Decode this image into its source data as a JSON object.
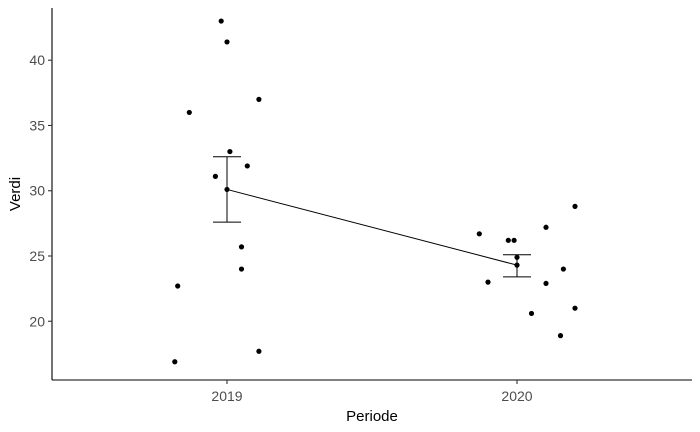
{
  "chart_data": {
    "type": "scatter",
    "xlabel": "Periode",
    "ylabel": "Verdi",
    "categories": [
      "2019",
      "2020"
    ],
    "ylim": [
      15.5,
      44
    ],
    "yticks": [
      20,
      25,
      30,
      35,
      40
    ],
    "grid": false,
    "legend": "none",
    "points": [
      {
        "category": "2019",
        "jitter": -0.18,
        "y": 16.9
      },
      {
        "category": "2019",
        "jitter": -0.17,
        "y": 22.7
      },
      {
        "category": "2019",
        "jitter": -0.13,
        "y": 36.0
      },
      {
        "category": "2019",
        "jitter": -0.04,
        "y": 31.1
      },
      {
        "category": "2019",
        "jitter": -0.02,
        "y": 43.0
      },
      {
        "category": "2019",
        "jitter": 0.0,
        "y": 41.4
      },
      {
        "category": "2019",
        "jitter": 0.01,
        "y": 33.0
      },
      {
        "category": "2019",
        "jitter": 0.05,
        "y": 25.7
      },
      {
        "category": "2019",
        "jitter": 0.05,
        "y": 24.0
      },
      {
        "category": "2019",
        "jitter": 0.07,
        "y": 31.9
      },
      {
        "category": "2019",
        "jitter": 0.11,
        "y": 37.0
      },
      {
        "category": "2019",
        "jitter": 0.11,
        "y": 17.7
      },
      {
        "category": "2020",
        "jitter": -0.13,
        "y": 26.7
      },
      {
        "category": "2020",
        "jitter": -0.1,
        "y": 23.0
      },
      {
        "category": "2020",
        "jitter": -0.03,
        "y": 26.2
      },
      {
        "category": "2020",
        "jitter": -0.01,
        "y": 26.2
      },
      {
        "category": "2020",
        "jitter": 0.0,
        "y": 24.9
      },
      {
        "category": "2020",
        "jitter": 0.05,
        "y": 20.6
      },
      {
        "category": "2020",
        "jitter": 0.1,
        "y": 27.2
      },
      {
        "category": "2020",
        "jitter": 0.1,
        "y": 22.9
      },
      {
        "category": "2020",
        "jitter": 0.15,
        "y": 18.9
      },
      {
        "category": "2020",
        "jitter": 0.16,
        "y": 24.0
      },
      {
        "category": "2020",
        "jitter": 0.2,
        "y": 28.8
      },
      {
        "category": "2020",
        "jitter": 0.2,
        "y": 21.0
      }
    ],
    "summary": [
      {
        "category": "2019",
        "mean": 30.1,
        "lower": 27.6,
        "upper": 32.6
      },
      {
        "category": "2020",
        "mean": 24.3,
        "lower": 23.4,
        "upper": 25.1
      }
    ]
  }
}
